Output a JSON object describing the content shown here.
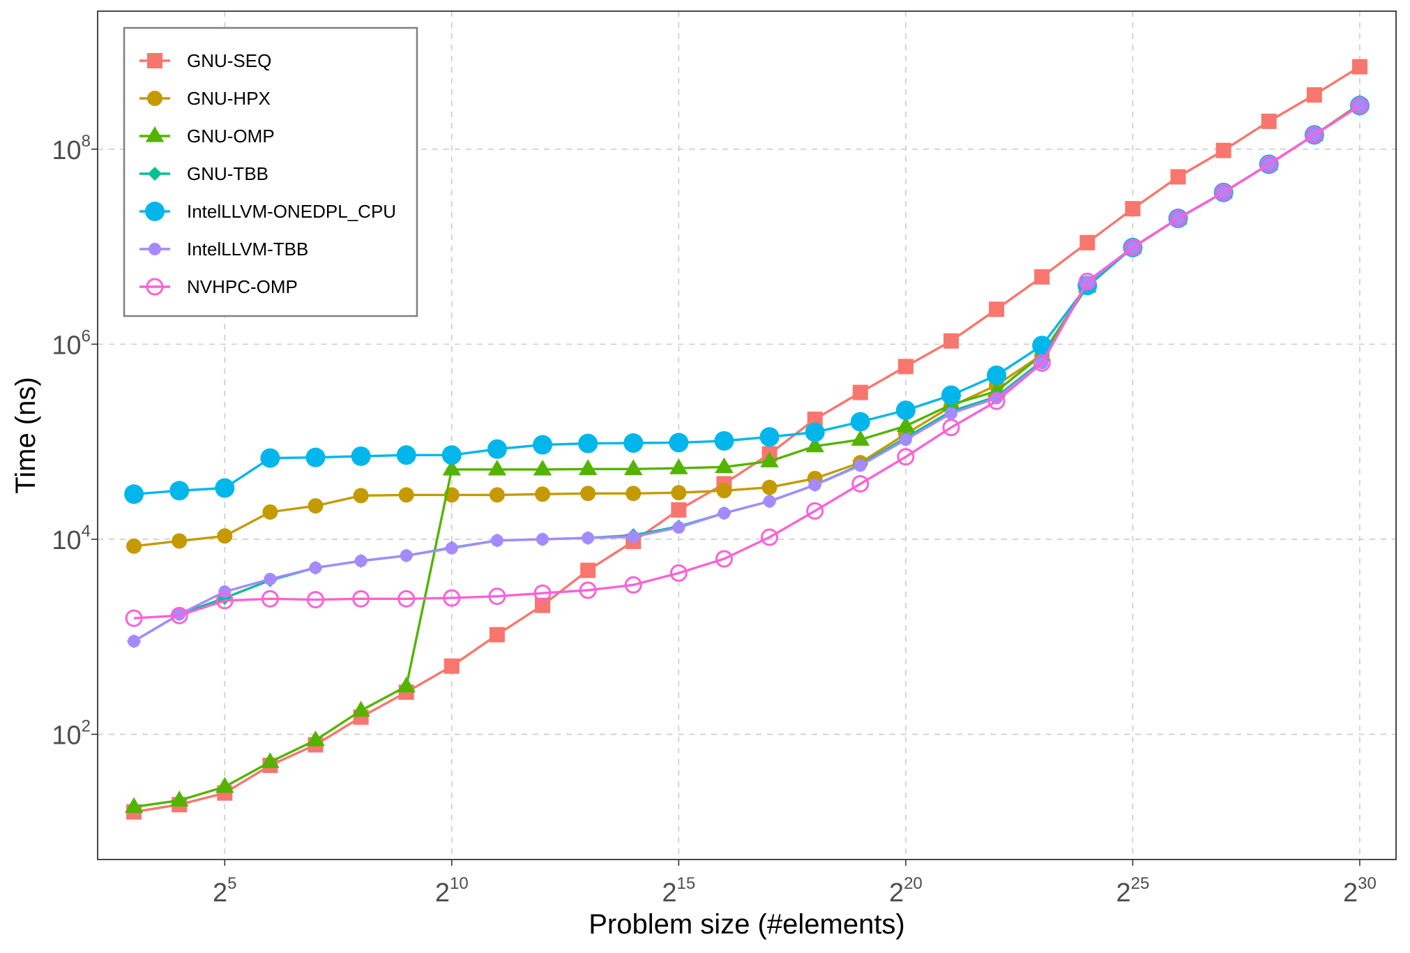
{
  "chart_data": {
    "type": "line",
    "title": "",
    "xlabel": "Problem size (#elements)",
    "ylabel": "Time (ns)",
    "x_scale": "log2",
    "y_scale": "log10",
    "xlim_exponent": [
      2.2,
      30.8
    ],
    "ylim": [
      5.2,
      2600000000.0
    ],
    "grid": true,
    "legend_position": "top-left",
    "x_ticks": [
      {
        "base": "2",
        "exp": "5",
        "value": 32
      },
      {
        "base": "2",
        "exp": "10",
        "value": 1024
      },
      {
        "base": "2",
        "exp": "15",
        "value": 32768
      },
      {
        "base": "2",
        "exp": "20",
        "value": 1048576
      },
      {
        "base": "2",
        "exp": "25",
        "value": 33554432
      },
      {
        "base": "2",
        "exp": "30",
        "value": 1073741824
      }
    ],
    "y_ticks": [
      {
        "base": "10",
        "exp": "2",
        "value": 100
      },
      {
        "base": "10",
        "exp": "4",
        "value": 10000
      },
      {
        "base": "10",
        "exp": "6",
        "value": 1000000
      },
      {
        "base": "10",
        "exp": "8",
        "value": 100000000
      }
    ],
    "x_exponents": [
      3,
      4,
      5,
      6,
      7,
      8,
      9,
      10,
      11,
      12,
      13,
      14,
      15,
      16,
      17,
      18,
      19,
      20,
      21,
      22,
      23,
      24,
      25,
      26,
      27,
      28,
      29,
      30
    ],
    "series": [
      {
        "name": "GNU-SEQ",
        "color": "#F8766D",
        "marker": "square",
        "values": [
          16,
          19,
          25,
          48,
          78,
          150,
          270,
          500,
          1050,
          2100,
          4800,
          9500,
          20000,
          37000,
          75000,
          170000,
          320000,
          590000,
          1080000,
          2280000,
          4900000,
          11000000,
          24500000,
          52000000,
          97000000,
          193000000,
          360000000,
          700000000
        ]
      },
      {
        "name": "GNU-HPX",
        "color": "#C49A00",
        "marker": "circle",
        "values": [
          8500,
          9600,
          10800,
          19000,
          22000,
          28000,
          28500,
          28500,
          28500,
          29000,
          29500,
          29500,
          30000,
          31500,
          34000,
          42000,
          61000,
          120000,
          230000,
          380000,
          780000,
          4000000,
          9800000,
          19500000,
          36000000,
          70000000,
          140000000,
          280000000
        ]
      },
      {
        "name": "GNU-OMP",
        "color": "#53B400",
        "marker": "triangle",
        "values": [
          18,
          21,
          29,
          52,
          87,
          175,
          310,
          52000,
          52000,
          52000,
          52500,
          52500,
          53500,
          55000,
          63000,
          90000,
          105000,
          145000,
          240000,
          330000,
          780000,
          3900000,
          9800000,
          19500000,
          36000000,
          70000000,
          140000000,
          290000000
        ]
      },
      {
        "name": "GNU-TBB",
        "color": "#00C094",
        "marker": "diamond",
        "values": [
          900,
          1700,
          2500,
          3800,
          5100,
          6000,
          6800,
          8200,
          9700,
          10000,
          10300,
          11000,
          13500,
          18500,
          24500,
          36000,
          58000,
          110000,
          205000,
          290000,
          670000,
          4200000,
          9800000,
          19500000,
          36000000,
          70000000,
          140000000,
          280000000
        ]
      },
      {
        "name": "IntelLLVM-ONEDPL_CPU",
        "color": "#00B6EB",
        "marker": "circle-large",
        "values": [
          29000,
          31500,
          33500,
          68000,
          69000,
          71000,
          73000,
          73000,
          84000,
          93000,
          96000,
          97000,
          98000,
          102000,
          112000,
          125000,
          160000,
          210000,
          300000,
          480000,
          970000,
          4000000,
          9800000,
          19500000,
          36000000,
          70000000,
          140000000,
          280000000
        ]
      },
      {
        "name": "IntelLLVM-TBB",
        "color": "#A58AFF",
        "marker": "circle-small",
        "values": [
          900,
          1700,
          2900,
          3900,
          5100,
          6000,
          6800,
          8100,
          9700,
          10000,
          10300,
          10600,
          13200,
          18500,
          24500,
          36000,
          57000,
          105000,
          195000,
          280000,
          640000,
          4300000,
          9800000,
          19500000,
          36000000,
          70000000,
          140000000,
          280000000
        ]
      },
      {
        "name": "NVHPC-OMP",
        "color": "#FB61D7",
        "marker": "circle-open",
        "values": [
          1550,
          1650,
          2350,
          2450,
          2400,
          2450,
          2450,
          2500,
          2600,
          2800,
          3000,
          3400,
          4500,
          6300,
          10500,
          19500,
          37000,
          70000,
          140000,
          260000,
          640000,
          4400000,
          9800000,
          19500000,
          36000000,
          70000000,
          140000000,
          280000000
        ]
      }
    ]
  }
}
